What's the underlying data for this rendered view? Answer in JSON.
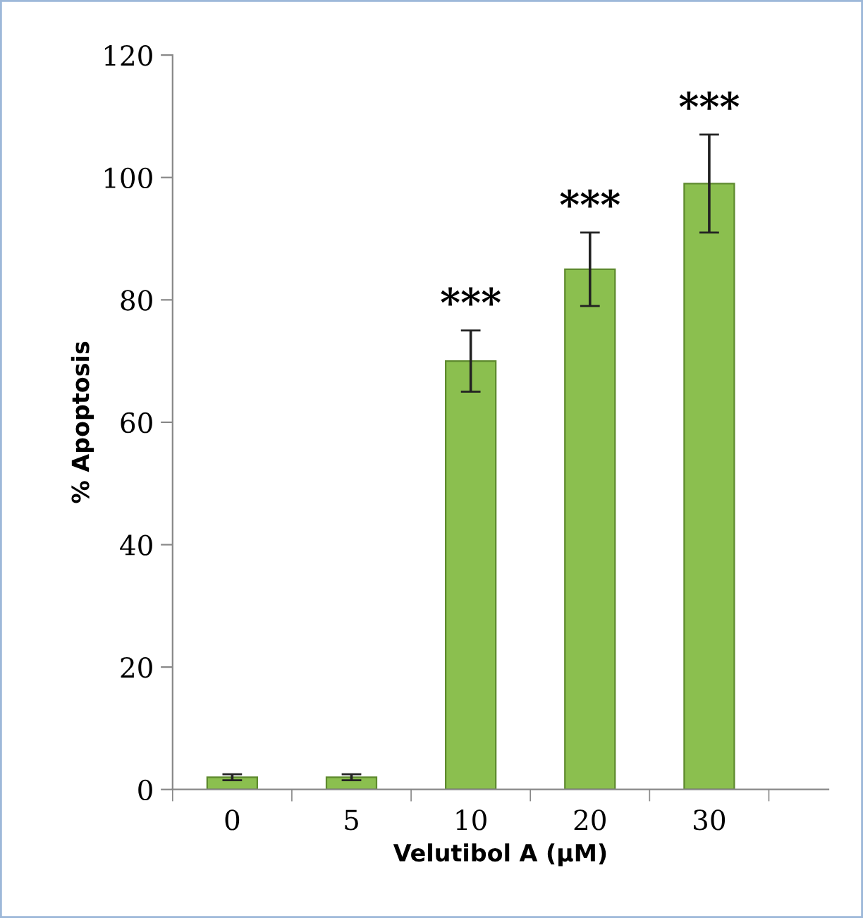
{
  "chart_data": {
    "type": "bar",
    "xlabel": "Velutibol A (μM)",
    "ylabel": "% Apoptosis",
    "categories": [
      "0",
      "5",
      "10",
      "20",
      "30"
    ],
    "values": [
      2,
      2,
      70,
      85,
      99
    ],
    "errors": [
      0.5,
      0.5,
      5,
      6,
      8
    ],
    "color": "#8bbf4f",
    "ylim": [
      0,
      120
    ],
    "yticks": [
      0,
      20,
      40,
      60,
      80,
      100,
      120
    ],
    "grid": false,
    "annotations": [
      {
        "text": "***",
        "x": "10",
        "y": 75
      },
      {
        "text": "***",
        "x": "20",
        "y": 91
      },
      {
        "text": "***",
        "x": "30",
        "y": 107
      }
    ]
  }
}
